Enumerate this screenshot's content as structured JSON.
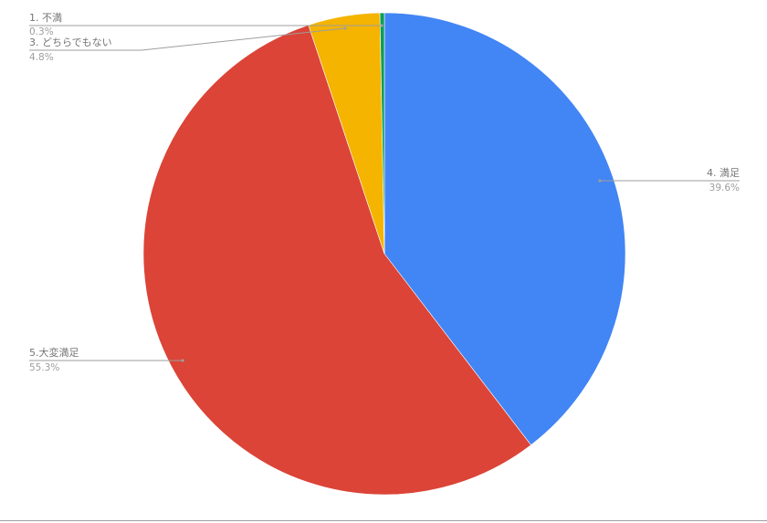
{
  "chart_data": {
    "type": "pie",
    "start_angle": "12 o'clock, clockwise",
    "slices": [
      {
        "label": "4. 満足",
        "value": 39.6,
        "pct_label": "39.6%",
        "color": "#4285f4"
      },
      {
        "label": "5.大変満足",
        "value": 55.3,
        "pct_label": "55.3%",
        "color": "#db4437"
      },
      {
        "label": "3. どちらでもない",
        "value": 4.8,
        "pct_label": "4.8%",
        "color": "#f4b400"
      },
      {
        "label": "1. 不満",
        "value": 0.3,
        "pct_label": "0.3%",
        "color": "#0f9d58"
      }
    ],
    "legend": "none (callout labels)"
  }
}
